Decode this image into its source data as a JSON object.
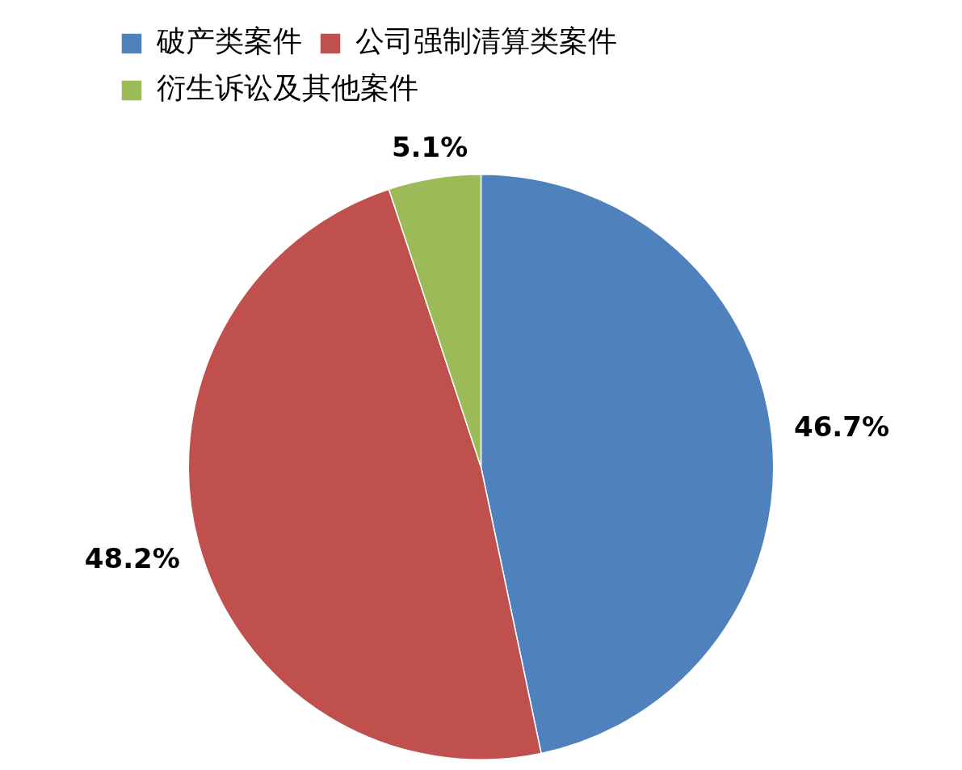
{
  "chart_data": {
    "type": "pie",
    "categories": [
      "破产类案件",
      "公司强制清算类案件",
      "衍生诉讼及其他案件"
    ],
    "values": [
      46.7,
      48.2,
      5.1
    ],
    "colors": [
      "#4f81bd",
      "#c0504d",
      "#9bbb59"
    ],
    "value_labels": [
      "46.7%",
      "48.2%",
      "5.1%"
    ],
    "legend": "top"
  }
}
